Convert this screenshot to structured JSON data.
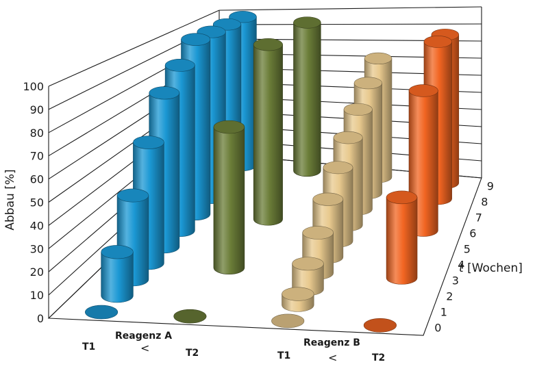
{
  "chart_data": {
    "type": "bar",
    "subtype": "3d-cylinder",
    "title": "",
    "ylabel": "Abbau [%]",
    "zlabel_var": "t",
    "zlabel_unit": " [Wochen]",
    "ylim": [
      0,
      100
    ],
    "y_ticks": [
      "0",
      "10",
      "20",
      "30",
      "40",
      "50",
      "60",
      "70",
      "80",
      "90",
      "100"
    ],
    "z_ticks": [
      "0",
      "1",
      "2",
      "3",
      "4",
      "5",
      "6",
      "7",
      "8",
      "9"
    ],
    "weeks": [
      0,
      1,
      2,
      3,
      4,
      5,
      6,
      7,
      8,
      9
    ],
    "categories": [
      "T1",
      "T2",
      "T1",
      "T2"
    ],
    "group_labels": [
      "Reagenz A",
      "Reagenz B"
    ],
    "comparison_symbol": "<",
    "series": [
      {
        "label": "T1",
        "group": "Reagenz A",
        "color": "#1b98d4",
        "points": [
          [
            0,
            0
          ],
          [
            1,
            20
          ],
          [
            2,
            40
          ],
          [
            3,
            60
          ],
          [
            4,
            80
          ],
          [
            5,
            90
          ],
          [
            6,
            100
          ],
          [
            7,
            100
          ],
          [
            8,
            100
          ],
          [
            9,
            100
          ]
        ]
      },
      {
        "label": "T2",
        "group": "Reagenz A",
        "color": "#6b7d38",
        "points": [
          [
            0,
            0
          ],
          [
            3,
            70
          ],
          [
            6,
            100
          ],
          [
            9,
            100
          ]
        ]
      },
      {
        "label": "T1",
        "group": "Reagenz B",
        "color": "#e8c98e",
        "points": [
          [
            0,
            0
          ],
          [
            1,
            5
          ],
          [
            2,
            12
          ],
          [
            3,
            20
          ],
          [
            4,
            30
          ],
          [
            5,
            40
          ],
          [
            6,
            50
          ],
          [
            7,
            60
          ],
          [
            8,
            70
          ],
          [
            9,
            80
          ]
        ]
      },
      {
        "label": "T2",
        "group": "Reagenz B",
        "color": "#f26522",
        "points": [
          [
            0,
            0
          ],
          [
            3,
            40
          ],
          [
            6,
            80
          ],
          [
            8,
            100
          ],
          [
            9,
            100
          ]
        ]
      }
    ]
  }
}
